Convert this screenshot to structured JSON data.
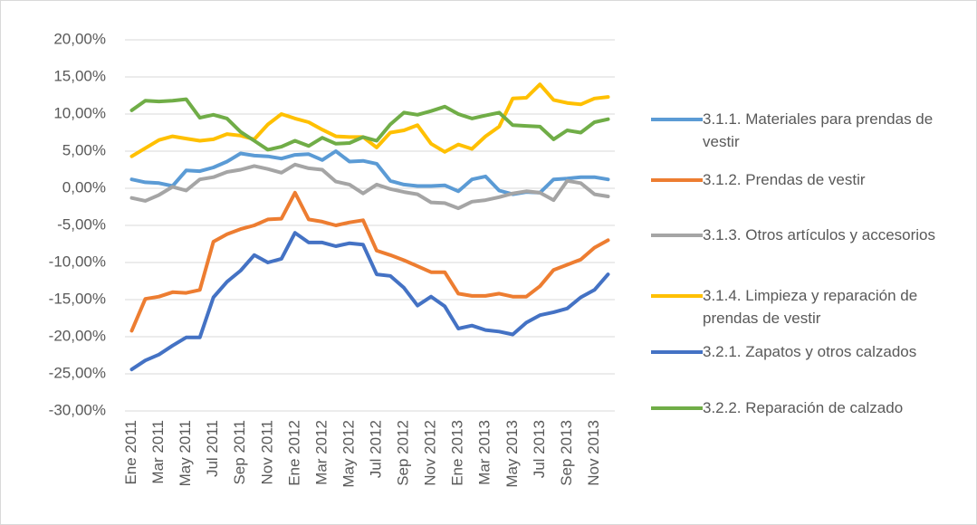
{
  "chart_data": {
    "type": "line",
    "categories": [
      "Ene 2011",
      null,
      "Mar 2011",
      null,
      "May 2011",
      null,
      "Jul 2011",
      null,
      "Sep 2011",
      null,
      "Nov 2011",
      null,
      "Ene 2012",
      null,
      "Mar 2012",
      null,
      "May 2012",
      null,
      "Jul 2012",
      null,
      "Sep 2012",
      null,
      "Nov 2012",
      null,
      "Ene 2013",
      null,
      "Mar 2013",
      null,
      "May 2013",
      null,
      "Jul 2013",
      null,
      "Sep 2013",
      null,
      "Nov 2013",
      null
    ],
    "ylim": [
      -30,
      20
    ],
    "yticks": [
      {
        "value": -30,
        "label": "-30,00%"
      },
      {
        "value": -25,
        "label": "-25,00%"
      },
      {
        "value": -20,
        "label": "-20,00%"
      },
      {
        "value": -15,
        "label": "-15,00%"
      },
      {
        "value": -10,
        "label": "-10,00%"
      },
      {
        "value": -5,
        "label": "-5,00%"
      },
      {
        "value": 0,
        "label": "0,00%"
      },
      {
        "value": 5,
        "label": "5,00%"
      },
      {
        "value": 10,
        "label": "10,00%"
      },
      {
        "value": 15,
        "label": "15,00%"
      },
      {
        "value": 20,
        "label": "20,00%"
      }
    ],
    "grid": true,
    "legend": "right",
    "series": [
      {
        "name": "3.1.1. Materiales para prendas de vestir",
        "color": "#5b9bd5",
        "values": [
          1.2,
          0.8,
          0.7,
          0.3,
          2.4,
          2.3,
          2.8,
          3.6,
          4.7,
          4.4,
          4.3,
          4.0,
          4.5,
          4.6,
          3.8,
          5.0,
          3.6,
          3.7,
          3.3,
          1.0,
          0.5,
          0.3,
          0.3,
          0.4,
          -0.4,
          1.2,
          1.6,
          -0.3,
          -0.8,
          -0.5,
          -0.6,
          1.2,
          1.3,
          1.5,
          1.5,
          1.2
        ]
      },
      {
        "name": "3.1.2. Prendas de vestir",
        "color": "#ed7d31",
        "values": [
          -19.2,
          -14.9,
          -14.6,
          -14.0,
          -14.1,
          -13.7,
          -7.2,
          -6.2,
          -5.5,
          -5.0,
          -4.2,
          -4.1,
          -0.6,
          -4.2,
          -4.5,
          -5.0,
          -4.6,
          -4.3,
          -8.4,
          -9.0,
          -9.7,
          -10.5,
          -11.3,
          -11.3,
          -14.2,
          -14.5,
          -14.5,
          -14.2,
          -14.6,
          -14.6,
          -13.2,
          -11.0,
          -10.3,
          -9.6,
          -8.0,
          -7.0
        ]
      },
      {
        "name": "3.1.3. Otros artículos y accesorios",
        "color": "#a5a5a5",
        "values": [
          -1.3,
          -1.7,
          -0.9,
          0.2,
          -0.3,
          1.2,
          1.5,
          2.2,
          2.5,
          3.0,
          2.6,
          2.1,
          3.2,
          2.7,
          2.5,
          0.9,
          0.5,
          -0.7,
          0.5,
          -0.1,
          -0.5,
          -0.8,
          -1.9,
          -2.0,
          -2.7,
          -1.8,
          -1.6,
          -1.2,
          -0.7,
          -0.4,
          -0.6,
          -1.6,
          1.0,
          0.7,
          -0.8,
          -1.1
        ]
      },
      {
        "name": "3.1.4. Limpieza y reparación de prendas de vestir",
        "color": "#ffc000",
        "values": [
          4.3,
          5.4,
          6.5,
          7.0,
          6.7,
          6.4,
          6.6,
          7.3,
          7.1,
          6.6,
          8.6,
          10.0,
          9.4,
          8.9,
          7.9,
          7.0,
          6.9,
          6.9,
          5.5,
          7.5,
          7.8,
          8.5,
          6.0,
          4.9,
          5.9,
          5.3,
          7.0,
          8.3,
          12.1,
          12.2,
          14.0,
          11.9,
          11.5,
          11.3,
          12.1,
          12.3
        ]
      },
      {
        "name": "3.2.1. Zapatos y otros calzados",
        "color": "#4472c4",
        "values": [
          -24.4,
          -23.2,
          -22.4,
          -21.2,
          -20.1,
          -20.1,
          -14.7,
          -12.6,
          -11.1,
          -9.0,
          -10.0,
          -9.5,
          -6.0,
          -7.3,
          -7.3,
          -7.8,
          -7.4,
          -7.6,
          -11.6,
          -11.8,
          -13.4,
          -15.8,
          -14.6,
          -15.9,
          -18.9,
          -18.5,
          -19.1,
          -19.3,
          -19.7,
          -18.1,
          -17.1,
          -16.7,
          -16.2,
          -14.7,
          -13.7,
          -11.6
        ]
      },
      {
        "name": "3.2.2. Reparación de calzado",
        "color": "#70ad47",
        "values": [
          10.5,
          11.8,
          11.7,
          11.8,
          12.0,
          9.5,
          9.9,
          9.4,
          7.6,
          6.4,
          5.2,
          5.6,
          6.4,
          5.7,
          6.8,
          6.0,
          6.1,
          6.9,
          6.4,
          8.6,
          10.2,
          9.9,
          10.4,
          11.0,
          10.0,
          9.4,
          9.8,
          10.2,
          8.5,
          8.4,
          8.3,
          6.6,
          7.8,
          7.5,
          8.9,
          9.3
        ]
      }
    ]
  }
}
